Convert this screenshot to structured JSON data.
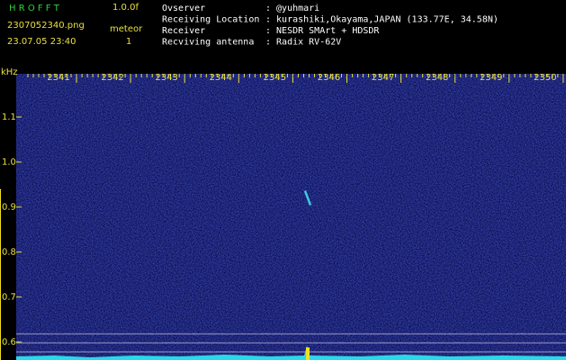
{
  "header": {
    "app": "H R O F F T",
    "version": "1.0.0f",
    "filename": "2307052340.png",
    "datetime": "23.07.05 23:40",
    "mode": "meteor",
    "count": "1"
  },
  "info": [
    {
      "label": "Ovserver",
      "value": ": @yuhmari"
    },
    {
      "label": "Receiving Location",
      "value": ": kurashiki,Okayama,JAPAN (133.77E, 34.58N)"
    },
    {
      "label": "Receiver",
      "value": ": NESDR SMArt + HDSDR"
    },
    {
      "label": "Recviving antenna",
      "value": ": Radix RV-62V"
    }
  ],
  "x_axis": {
    "ticks": [
      "2341",
      "2342",
      "2343",
      "2344",
      "2345",
      "2346",
      "2347",
      "2348",
      "2349",
      "2350"
    ]
  },
  "y_axis": {
    "unit": "kHz",
    "ticks": [
      "1.1",
      "1.0",
      "0.9",
      "0.8",
      "0.7",
      "0.6"
    ]
  }
}
